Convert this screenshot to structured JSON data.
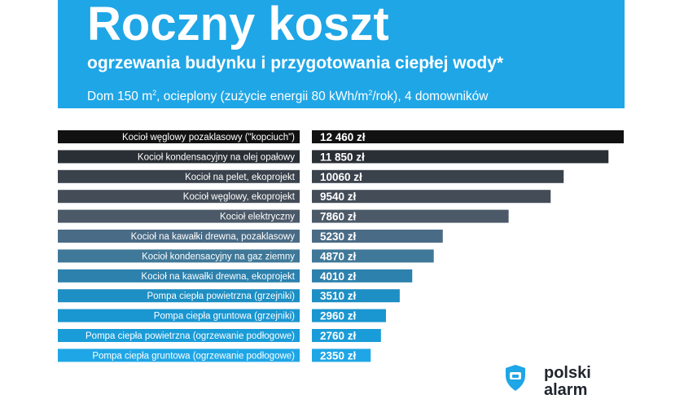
{
  "header": {
    "title": "Roczny koszt",
    "subtitle": "ogrzewania budynku i przygotowania ciepłej wody*",
    "note_prefix": "Dom 150 m",
    "note_sup": "2",
    "note_mid": ", ocieplony (zużycie energii 80 kWh/m",
    "note_sup2": "2",
    "note_suffix": "/rok), 4 domowników"
  },
  "logo": {
    "text": "polski\nalarm"
  },
  "colors": {
    "header_bg": "#1fa6e6",
    "bars": [
      "#111111",
      "#2a2f36",
      "#3a424c",
      "#434c57",
      "#4b5968",
      "#4a6b85",
      "#3f7898",
      "#2d81ad",
      "#1d8fc4",
      "#1a96d1",
      "#1a9cd8",
      "#1fa6e6"
    ]
  },
  "chart_data": {
    "type": "bar",
    "orientation": "horizontal",
    "categories": [
      "Kocioł węglowy pozaklasowy (\"kopciuch\")",
      "Kocioł kondensacyjny na olej opałowy",
      "Kocioł na pelet, ekoprojekt",
      "Kocioł węglowy, ekoprojekt",
      "Kocioł elektryczny",
      "Kocioł na kawałki drewna, pozaklasowy",
      "Kocioł kondensacyjny na gaz ziemny",
      "Kocioł na kawałki drewna, ekoprojekt",
      "Pompa ciepła powietrzna (grzejniki)",
      "Pompa ciepła gruntowa (grzejniki)",
      "Pompa ciepła powietrzna (ogrzewanie podłogowe)",
      "Pompa ciepła gruntowa (ogrzewanie podłogowe)"
    ],
    "values": [
      12460,
      11850,
      10060,
      9540,
      7860,
      5230,
      4870,
      4010,
      3510,
      2960,
      2760,
      2350
    ],
    "value_labels": [
      "12 460 zł",
      "11 850 zł",
      "10060 zł",
      "9540 zł",
      "7860 zł",
      "5230 zł",
      "4870 zł",
      "4010 zł",
      "3510 zł",
      "2960 zł",
      "2760 zł",
      "2350 zł"
    ],
    "unit": "zł",
    "xlim": [
      0,
      12460
    ]
  }
}
